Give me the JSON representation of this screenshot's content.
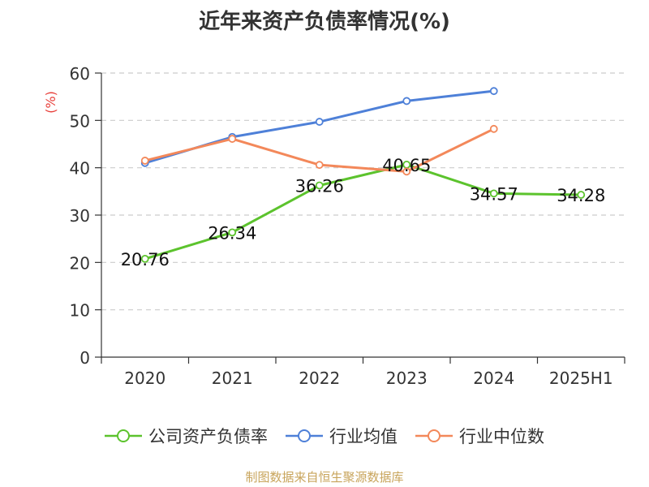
{
  "chart_data": {
    "type": "line",
    "title": "近年来资产负债率情况(%)",
    "ylabel": "(%)",
    "xlabel": "",
    "categories": [
      "2020",
      "2021",
      "2022",
      "2023",
      "2024",
      "2025H1"
    ],
    "ylim": [
      0,
      60
    ],
    "yticks": [
      "0",
      "10",
      "20",
      "30",
      "40",
      "50",
      "60"
    ],
    "grid": true,
    "legend_position": "bottom",
    "series": [
      {
        "name": "公司资产负债率",
        "color": "#5cc32d",
        "values": [
          20.76,
          26.34,
          36.26,
          40.65,
          34.57,
          34.28
        ],
        "labels": [
          "20.76",
          "26.34",
          "36.26",
          "40.65",
          "34.57",
          "34.28"
        ]
      },
      {
        "name": "行业均值",
        "color": "#4e80d8",
        "values": [
          41.0,
          46.5,
          49.7,
          54.1,
          56.2,
          null
        ]
      },
      {
        "name": "行业中位数",
        "color": "#f3885a",
        "values": [
          41.5,
          46.1,
          40.6,
          39.2,
          48.2,
          null
        ]
      }
    ],
    "source": "制图数据来自恒生聚源数据库"
  }
}
